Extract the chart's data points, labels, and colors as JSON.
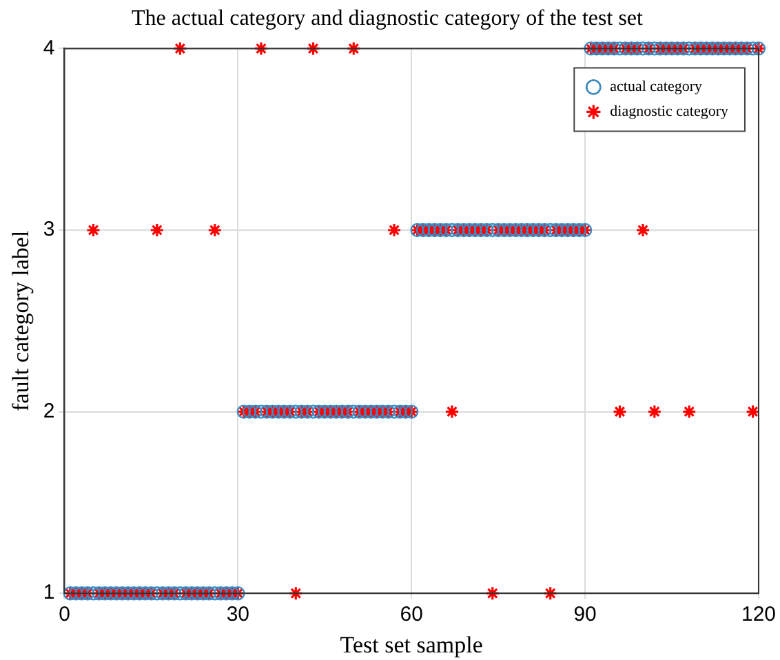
{
  "chart_data": {
    "type": "scatter",
    "title": "The actual category and diagnostic category of the test set",
    "xlabel": "Test set sample",
    "ylabel": "fault category label",
    "x": [
      1,
      2,
      3,
      4,
      5,
      6,
      7,
      8,
      9,
      10,
      11,
      12,
      13,
      14,
      15,
      16,
      17,
      18,
      19,
      20,
      21,
      22,
      23,
      24,
      25,
      26,
      27,
      28,
      29,
      30,
      31,
      32,
      33,
      34,
      35,
      36,
      37,
      38,
      39,
      40,
      41,
      42,
      43,
      44,
      45,
      46,
      47,
      48,
      49,
      50,
      51,
      52,
      53,
      54,
      55,
      56,
      57,
      58,
      59,
      60,
      61,
      62,
      63,
      64,
      65,
      66,
      67,
      68,
      69,
      70,
      71,
      72,
      73,
      74,
      75,
      76,
      77,
      78,
      79,
      80,
      81,
      82,
      83,
      84,
      85,
      86,
      87,
      88,
      89,
      90,
      91,
      92,
      93,
      94,
      95,
      96,
      97,
      98,
      99,
      100,
      101,
      102,
      103,
      104,
      105,
      106,
      107,
      108,
      109,
      110,
      111,
      112,
      113,
      114,
      115,
      116,
      117,
      118,
      119,
      120
    ],
    "series": [
      {
        "name": "actual category",
        "color": "#3b8cc4",
        "marker": "circle",
        "values": [
          1,
          1,
          1,
          1,
          1,
          1,
          1,
          1,
          1,
          1,
          1,
          1,
          1,
          1,
          1,
          1,
          1,
          1,
          1,
          1,
          1,
          1,
          1,
          1,
          1,
          1,
          1,
          1,
          1,
          1,
          2,
          2,
          2,
          2,
          2,
          2,
          2,
          2,
          2,
          2,
          2,
          2,
          2,
          2,
          2,
          2,
          2,
          2,
          2,
          2,
          2,
          2,
          2,
          2,
          2,
          2,
          2,
          2,
          2,
          2,
          3,
          3,
          3,
          3,
          3,
          3,
          3,
          3,
          3,
          3,
          3,
          3,
          3,
          3,
          3,
          3,
          3,
          3,
          3,
          3,
          3,
          3,
          3,
          3,
          3,
          3,
          3,
          3,
          3,
          3,
          4,
          4,
          4,
          4,
          4,
          4,
          4,
          4,
          4,
          4,
          4,
          4,
          4,
          4,
          4,
          4,
          4,
          4,
          4,
          4,
          4,
          4,
          4,
          4,
          4,
          4,
          4,
          4,
          4,
          4
        ]
      },
      {
        "name": "diagnostic category",
        "color": "#ff0000",
        "marker": "cross",
        "values": [
          1,
          1,
          1,
          1,
          3,
          1,
          1,
          1,
          1,
          1,
          1,
          1,
          1,
          1,
          1,
          3,
          1,
          1,
          1,
          4,
          1,
          1,
          1,
          1,
          1,
          3,
          1,
          1,
          1,
          1,
          2,
          2,
          2,
          4,
          2,
          2,
          2,
          2,
          2,
          1,
          2,
          2,
          4,
          2,
          2,
          2,
          2,
          2,
          2,
          4,
          2,
          2,
          2,
          2,
          2,
          2,
          3,
          2,
          2,
          2,
          3,
          3,
          3,
          3,
          3,
          3,
          2,
          3,
          3,
          3,
          3,
          3,
          3,
          1,
          3,
          3,
          3,
          3,
          3,
          3,
          3,
          3,
          3,
          1,
          3,
          3,
          3,
          3,
          3,
          3,
          4,
          4,
          4,
          4,
          4,
          2,
          4,
          4,
          4,
          3,
          4,
          2,
          4,
          4,
          4,
          4,
          4,
          2,
          4,
          4,
          4,
          4,
          4,
          4,
          4,
          4,
          4,
          4,
          2,
          4
        ]
      }
    ],
    "xlim": [
      0,
      120
    ],
    "xticks": [
      0,
      30,
      60,
      90,
      120
    ],
    "ylim": [
      1,
      4
    ],
    "yticks": [
      1,
      2,
      3,
      4
    ],
    "grid": true,
    "legend": "top right"
  }
}
